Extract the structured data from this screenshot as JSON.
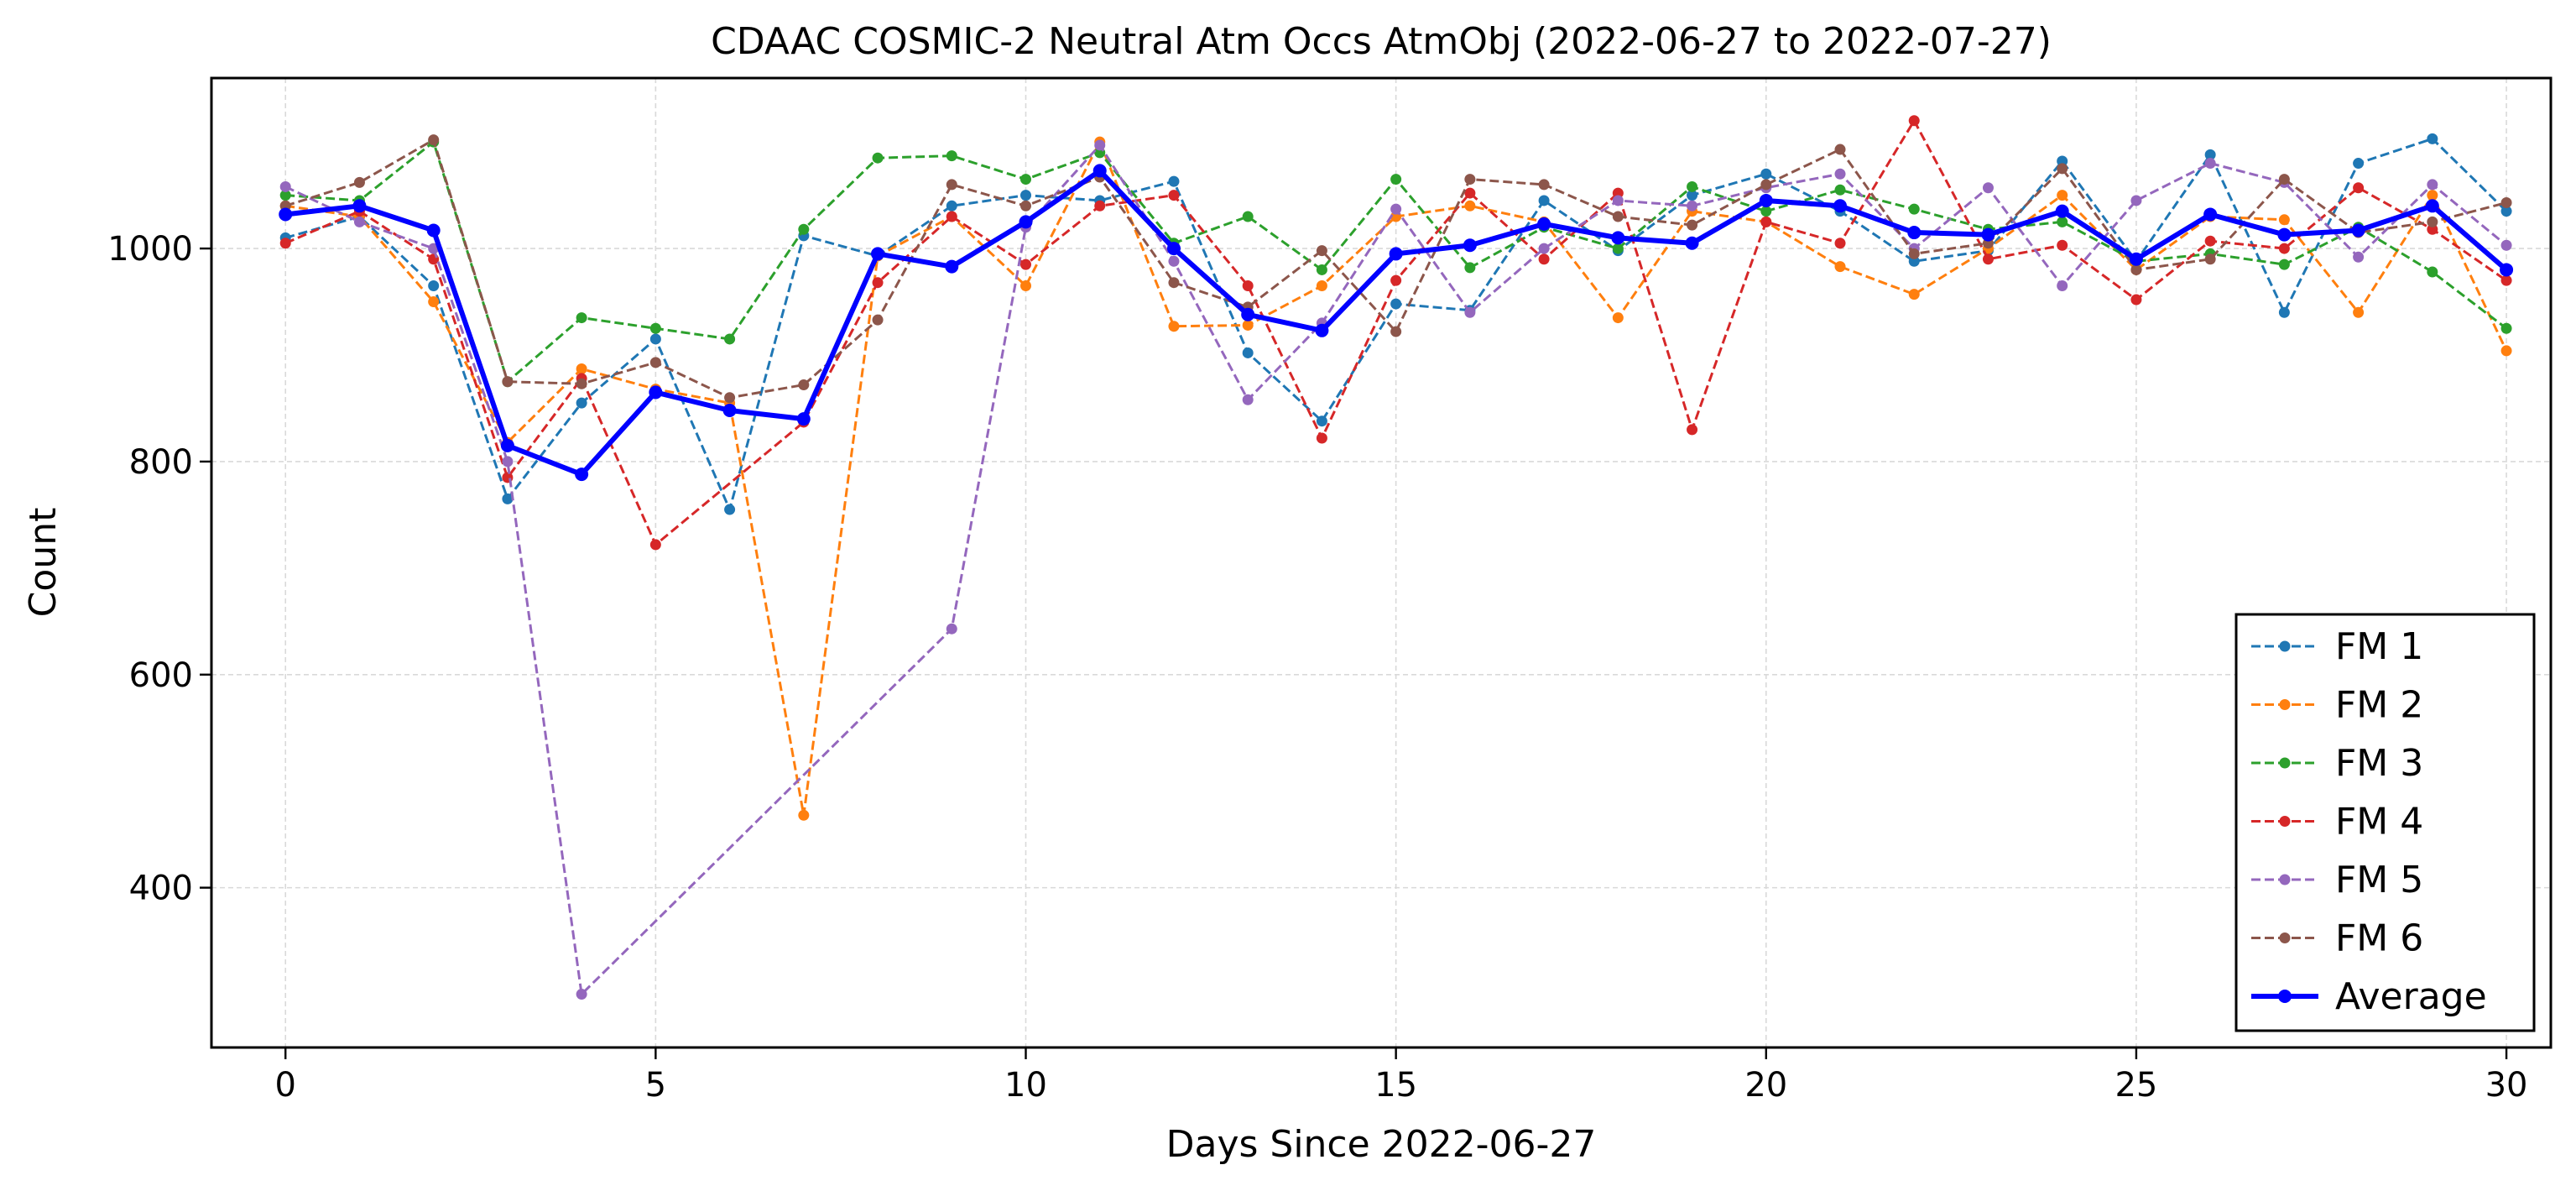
{
  "chart_data": {
    "type": "line",
    "title": "CDAAC COSMIC-2 Neutral Atm Occs AtmObj (2022-06-27 to 2022-07-27)",
    "xlabel": "Days Since 2022-06-27",
    "ylabel": "Count",
    "xlim": [
      -1,
      30.6
    ],
    "ylim": [
      250,
      1160
    ],
    "xticks": [
      0,
      5,
      10,
      15,
      20,
      25,
      30
    ],
    "yticks": [
      400,
      600,
      800,
      1000
    ],
    "grid": true,
    "legend_position": "lower-right",
    "series": [
      {
        "name": "FM 1",
        "color": "#1f77b4",
        "style": "dashed",
        "x": [
          0,
          1,
          2,
          3,
          4,
          5,
          6,
          7,
          8,
          9,
          10,
          11,
          12,
          13,
          14,
          15,
          16,
          17,
          18,
          19,
          20,
          21,
          22,
          23,
          24,
          25,
          26,
          27,
          28,
          29,
          30
        ],
        "values": [
          1010,
          1030,
          965,
          765,
          855,
          915,
          755,
          1012,
          993,
          1040,
          1050,
          1045,
          1063,
          902,
          838,
          948,
          942,
          1045,
          998,
          1050,
          1070,
          1035,
          988,
          998,
          1082,
          988,
          1088,
          940,
          1080,
          1103,
          1035
        ]
      },
      {
        "name": "FM 2",
        "color": "#ff7f0e",
        "style": "dashed",
        "x": [
          0,
          1,
          2,
          3,
          4,
          5,
          6,
          7,
          8,
          9,
          10,
          11,
          12,
          13,
          14,
          15,
          16,
          17,
          18,
          19,
          20,
          21,
          22,
          23,
          24,
          25,
          26,
          27,
          28,
          29,
          30
        ],
        "values": [
          1040,
          1030,
          950,
          818,
          887,
          868,
          855,
          468,
          993,
          1030,
          965,
          1100,
          927,
          928,
          965,
          1030,
          1040,
          1025,
          935,
          1035,
          1025,
          983,
          957,
          1000,
          1050,
          980,
          1030,
          1027,
          940,
          1050,
          904
        ]
      },
      {
        "name": "FM 3",
        "color": "#2ca02c",
        "style": "dashed",
        "x": [
          0,
          1,
          2,
          3,
          4,
          5,
          6,
          7,
          8,
          9,
          10,
          11,
          12,
          13,
          14,
          15,
          16,
          17,
          18,
          19,
          20,
          21,
          22,
          23,
          24,
          25,
          26,
          27,
          28,
          29,
          30
        ],
        "values": [
          1050,
          1045,
          1100,
          875,
          935,
          925,
          915,
          1018,
          1085,
          1087,
          1065,
          1090,
          1005,
          1030,
          980,
          1065,
          982,
          1020,
          1000,
          1058,
          1035,
          1055,
          1037,
          1018,
          1025,
          988,
          995,
          985,
          1020,
          978,
          925
        ]
      },
      {
        "name": "FM 4",
        "color": "#d62728",
        "style": "dashed",
        "x": [
          0,
          1,
          2,
          3,
          4,
          5,
          7,
          8,
          9,
          10,
          11,
          12,
          13,
          14,
          15,
          16,
          17,
          18,
          19,
          20,
          21,
          22,
          23,
          24,
          25,
          26,
          27,
          28,
          29,
          30
        ],
        "values": [
          1005,
          1035,
          990,
          785,
          878,
          722,
          837,
          968,
          1030,
          985,
          1040,
          1050,
          965,
          822,
          970,
          1052,
          990,
          1052,
          830,
          1025,
          1005,
          1120,
          990,
          1003,
          952,
          1007,
          1000,
          1057,
          1018,
          970
        ]
      },
      {
        "name": "FM 5",
        "color": "#9467bd",
        "style": "dashed",
        "x": [
          0,
          1,
          2,
          3,
          4,
          9,
          10,
          11,
          12,
          13,
          14,
          15,
          16,
          17,
          18,
          19,
          20,
          21,
          22,
          23,
          24,
          25,
          26,
          27,
          28,
          29,
          30
        ],
        "values": [
          1058,
          1025,
          1000,
          800,
          300,
          643,
          1020,
          1097,
          988,
          858,
          930,
          1037,
          940,
          1000,
          1045,
          1040,
          1057,
          1070,
          1000,
          1057,
          965,
          1045,
          1080,
          1062,
          992,
          1060,
          1003
        ]
      },
      {
        "name": "FM 6",
        "color": "#8c564b",
        "style": "dashed",
        "x": [
          0,
          1,
          2,
          3,
          4,
          5,
          6,
          7,
          8,
          9,
          10,
          11,
          12,
          13,
          14,
          15,
          16,
          17,
          18,
          19,
          20,
          21,
          22,
          23,
          24,
          25,
          26,
          27,
          28,
          29,
          30
        ],
        "values": [
          1040,
          1062,
          1102,
          875,
          873,
          893,
          860,
          872,
          933,
          1060,
          1040,
          1067,
          968,
          945,
          998,
          922,
          1065,
          1060,
          1030,
          1022,
          1060,
          1093,
          995,
          1005,
          1075,
          980,
          990,
          1065,
          1015,
          1025,
          1043
        ]
      },
      {
        "name": "Average",
        "color": "#0000ff",
        "style": "solid",
        "x": [
          0,
          1,
          2,
          3,
          4,
          5,
          6,
          7,
          8,
          9,
          10,
          11,
          12,
          13,
          14,
          15,
          16,
          17,
          18,
          19,
          20,
          21,
          22,
          23,
          24,
          25,
          26,
          27,
          28,
          29,
          30
        ],
        "values": [
          1032,
          1040,
          1017,
          815,
          788,
          865,
          848,
          840,
          995,
          983,
          1025,
          1073,
          1000,
          938,
          923,
          995,
          1003,
          1023,
          1010,
          1005,
          1045,
          1040,
          1015,
          1013,
          1035,
          990,
          1032,
          1013,
          1017,
          1040,
          980
        ]
      }
    ]
  }
}
